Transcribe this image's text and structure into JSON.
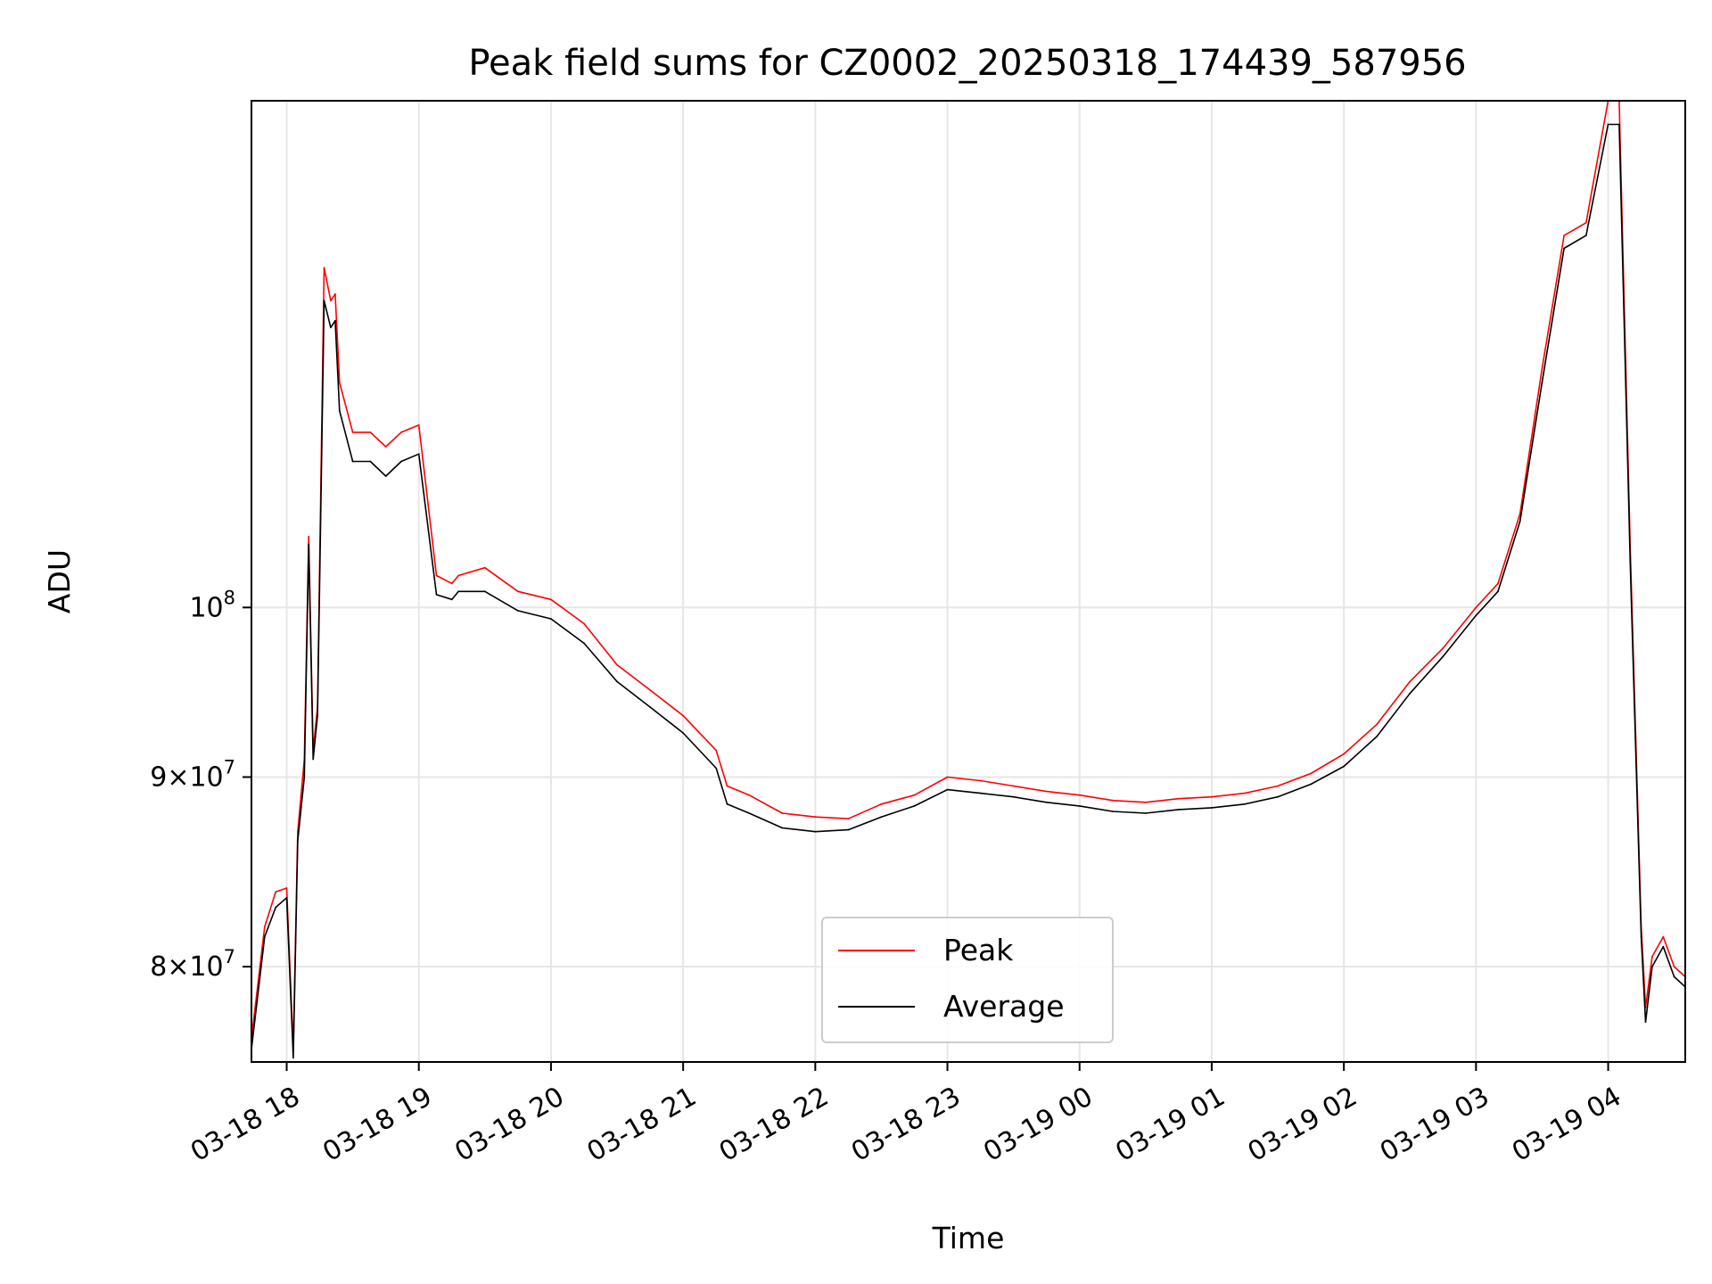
{
  "chart_data": {
    "type": "line",
    "title": "Peak field sums for CZ0002_20250318_174439_587956",
    "xlabel": "Time",
    "ylabel": "ADU",
    "yscale": "log",
    "xlim": [
      "2025-03-18 17:44",
      "2025-03-19 04:35"
    ],
    "ylim": [
      75400000,
      137000000
    ],
    "grid": true,
    "legend": {
      "placement": "lower center",
      "entries": [
        "Peak",
        "Average"
      ]
    },
    "x_ticks": [
      "03-18 18",
      "03-18 19",
      "03-18 20",
      "03-18 21",
      "03-18 22",
      "03-18 23",
      "03-19 00",
      "03-19 01",
      "03-19 02",
      "03-19 03",
      "03-19 04"
    ],
    "y_ticks": [
      {
        "value": 80000000,
        "mant": "8",
        "exp": "7"
      },
      {
        "value": 90000000,
        "mant": "9",
        "exp": "7"
      },
      {
        "value": 100000000,
        "mant": "",
        "exp": "8"
      }
    ],
    "series": [
      {
        "name": "Peak",
        "color": "#ff0000",
        "x": [
          "03-18 17:44",
          "03-18 17:50",
          "03-18 17:55",
          "03-18 18:00",
          "03-18 18:03",
          "03-18 18:05",
          "03-18 18:08",
          "03-18 18:10",
          "03-18 18:12",
          "03-18 18:14",
          "03-18 18:17",
          "03-18 18:20",
          "03-18 18:22",
          "03-18 18:24",
          "03-18 18:30",
          "03-18 18:38",
          "03-18 18:45",
          "03-18 18:52",
          "03-18 19:00",
          "03-18 19:08",
          "03-18 19:15",
          "03-18 19:18",
          "03-18 19:30",
          "03-18 19:45",
          "03-18 20:00",
          "03-18 20:15",
          "03-18 20:30",
          "03-18 20:45",
          "03-18 21:00",
          "03-18 21:15",
          "03-18 21:20",
          "03-18 21:30",
          "03-18 21:45",
          "03-18 22:00",
          "03-18 22:15",
          "03-18 22:30",
          "03-18 22:45",
          "03-18 23:00",
          "03-18 23:15",
          "03-18 23:30",
          "03-18 23:45",
          "03-19 00:00",
          "03-19 00:15",
          "03-19 00:30",
          "03-19 00:45",
          "03-19 01:00",
          "03-19 01:15",
          "03-19 01:30",
          "03-19 01:45",
          "03-19 02:00",
          "03-19 02:15",
          "03-19 02:30",
          "03-19 02:45",
          "03-19 03:00",
          "03-19 03:10",
          "03-19 03:20",
          "03-19 03:30",
          "03-19 03:40",
          "03-19 03:50",
          "03-19 04:00",
          "03-19 04:05",
          "03-19 04:10",
          "03-19 04:15",
          "03-19 04:17",
          "03-19 04:20",
          "03-19 04:25",
          "03-19 04:30",
          "03-19 04:35"
        ],
        "values": [
          76500000,
          82000000,
          83800000,
          84000000,
          76000000,
          87000000,
          91000000,
          104500000,
          91500000,
          94000000,
          123500000,
          121000000,
          121500000,
          115000000,
          111500000,
          111500000,
          110500000,
          111500000,
          112000000,
          102000000,
          101500000,
          102000000,
          102500000,
          101000000,
          100500000,
          99000000,
          96500000,
          95000000,
          93500000,
          91500000,
          89500000,
          89000000,
          88000000,
          87800000,
          87700000,
          88500000,
          89000000,
          90000000,
          89800000,
          89500000,
          89200000,
          89000000,
          88700000,
          88600000,
          88800000,
          88900000,
          89100000,
          89500000,
          90200000,
          91300000,
          93000000,
          95500000,
          97500000,
          100000000,
          101500000,
          106000000,
          116000000,
          126000000,
          127000000,
          137000000,
          137000000,
          104000000,
          82000000,
          78000000,
          80500000,
          81500000,
          80000000,
          79500000
        ]
      },
      {
        "name": "Average",
        "color": "#000000",
        "x": [
          "03-18 17:44",
          "03-18 17:50",
          "03-18 17:55",
          "03-18 18:00",
          "03-18 18:03",
          "03-18 18:05",
          "03-18 18:08",
          "03-18 18:10",
          "03-18 18:12",
          "03-18 18:14",
          "03-18 18:17",
          "03-18 18:20",
          "03-18 18:22",
          "03-18 18:24",
          "03-18 18:30",
          "03-18 18:38",
          "03-18 18:45",
          "03-18 18:52",
          "03-18 19:00",
          "03-18 19:08",
          "03-18 19:15",
          "03-18 19:18",
          "03-18 19:30",
          "03-18 19:45",
          "03-18 20:00",
          "03-18 20:15",
          "03-18 20:30",
          "03-18 20:45",
          "03-18 21:00",
          "03-18 21:15",
          "03-18 21:20",
          "03-18 21:30",
          "03-18 21:45",
          "03-18 22:00",
          "03-18 22:15",
          "03-18 22:30",
          "03-18 22:45",
          "03-18 23:00",
          "03-18 23:15",
          "03-18 23:30",
          "03-18 23:45",
          "03-19 00:00",
          "03-19 00:15",
          "03-19 00:30",
          "03-19 00:45",
          "03-19 01:00",
          "03-19 01:15",
          "03-19 01:30",
          "03-19 01:45",
          "03-19 02:00",
          "03-19 02:15",
          "03-19 02:30",
          "03-19 02:45",
          "03-19 03:00",
          "03-19 03:10",
          "03-19 03:20",
          "03-19 03:30",
          "03-19 03:40",
          "03-19 03:50",
          "03-19 04:00",
          "03-19 04:05",
          "03-19 04:10",
          "03-19 04:15",
          "03-19 04:17",
          "03-19 04:20",
          "03-19 04:25",
          "03-19 04:30",
          "03-19 04:35"
        ],
        "values": [
          76000000,
          81500000,
          83000000,
          83500000,
          75600000,
          86500000,
          90000000,
          104000000,
          91000000,
          93500000,
          121000000,
          119000000,
          119500000,
          113000000,
          109500000,
          109500000,
          108500000,
          109500000,
          110000000,
          100800000,
          100500000,
          101000000,
          101000000,
          99800000,
          99300000,
          97800000,
          95500000,
          94000000,
          92500000,
          90500000,
          88500000,
          88000000,
          87200000,
          87000000,
          87100000,
          87800000,
          88400000,
          89300000,
          89100000,
          88900000,
          88600000,
          88400000,
          88100000,
          88000000,
          88200000,
          88300000,
          88500000,
          88900000,
          89600000,
          90600000,
          92300000,
          94800000,
          97000000,
          99500000,
          101000000,
          105500000,
          115000000,
          125000000,
          126000000,
          135000000,
          135000000,
          103000000,
          81500000,
          77300000,
          80000000,
          81000000,
          79500000,
          79000000
        ]
      }
    ]
  }
}
